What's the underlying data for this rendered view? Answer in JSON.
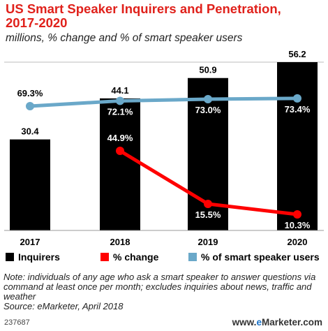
{
  "header": {
    "title": "US Smart Speaker Inquirers and Penetration, 2017-2020",
    "subtitle": "millions, % change and % of smart speaker users"
  },
  "colors": {
    "title": "#e0211b",
    "bars": "#000000",
    "change_line": "#ff0000",
    "users_line": "#6aa8c9",
    "gridline": "#bbbbbb"
  },
  "chart_data": {
    "type": "bar",
    "categories": [
      "2017",
      "2018",
      "2019",
      "2020"
    ],
    "series": [
      {
        "name": "Inquirers",
        "type": "bar",
        "values": [
          30.4,
          44.1,
          50.9,
          56.2
        ],
        "labels": [
          "30.4",
          "44.1",
          "50.9",
          "56.2"
        ]
      },
      {
        "name": "% change",
        "type": "line",
        "values": [
          null,
          44.9,
          15.5,
          10.3
        ],
        "labels": [
          "",
          "44.9%",
          "15.5%",
          "10.3%"
        ]
      },
      {
        "name": "% of smart speaker users",
        "type": "line",
        "values": [
          69.3,
          72.1,
          73.0,
          73.4
        ],
        "labels": [
          "69.3%",
          "72.1%",
          "73.0%",
          "73.4%"
        ]
      }
    ],
    "bar_ylim": [
      0,
      56.2
    ],
    "legend_position": "bottom"
  },
  "legend": {
    "items": [
      {
        "label": "Inquirers",
        "color": "#000000"
      },
      {
        "label": "% change",
        "color": "#ff0000"
      },
      {
        "label": "% of smart speaker users",
        "color": "#6aa8c9"
      }
    ]
  },
  "footer": {
    "note": "Note: individuals of any age who ask a smart speaker to answer questions via command at least once per month; excludes inquiries about news, traffic and weather",
    "source": "Source: eMarketer, April 2018",
    "chart_id": "237687",
    "brand_prefix": "www.",
    "brand_e": "e",
    "brand_suffix": "Marketer.com"
  }
}
